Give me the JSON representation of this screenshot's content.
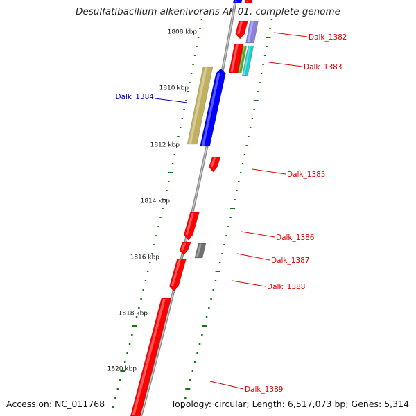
{
  "title": "Desulfatibacillum alkenivorans AK-01, complete genome",
  "accession": "Accession: NC_011768",
  "topology_info": "Topology: circular; Length: 6,517,073 bp; Genes: 5,314",
  "colors": {
    "backbone": "#8c8c8c",
    "gene_red": "#ff0000",
    "gene_blue": "#0000ff",
    "gene_lavender": "#8a80e0",
    "gene_olive": "#c0b060",
    "gene_cyan": "#22cccc",
    "gene_green": "#55aa22",
    "gene_gray": "#707070",
    "gc_tick": "#117711",
    "label_red": "#dd0000",
    "label_blue": "#0000cc"
  },
  "ruler": [
    {
      "label": "1808 kbp"
    },
    {
      "label": "1810 kbp"
    },
    {
      "label": "1812 kbp"
    },
    {
      "label": "1814 kbp"
    },
    {
      "label": "1816 kbp"
    },
    {
      "label": "1818 kbp"
    },
    {
      "label": "1820 kbp"
    }
  ],
  "gene_labels": [
    {
      "name": "Dalk_1382",
      "color": "red"
    },
    {
      "name": "Dalk_1383",
      "color": "red"
    },
    {
      "name": "Dalk_1384",
      "color": "blue"
    },
    {
      "name": "Dalk_1385",
      "color": "red"
    },
    {
      "name": "Dalk_1386",
      "color": "red"
    },
    {
      "name": "Dalk_1387",
      "color": "red"
    },
    {
      "name": "Dalk_1388",
      "color": "red"
    },
    {
      "name": "Dalk_1389",
      "color": "red"
    }
  ]
}
